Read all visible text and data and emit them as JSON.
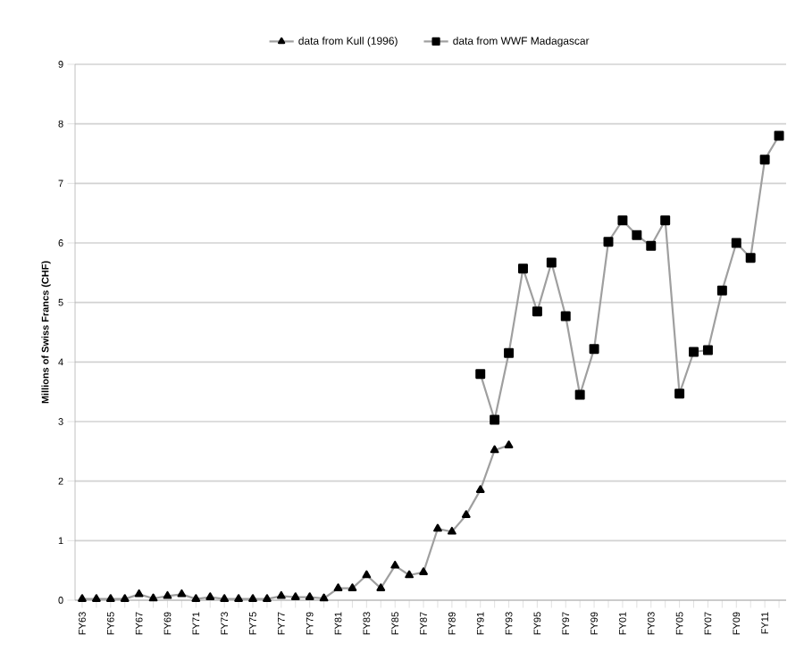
{
  "chart_data": {
    "type": "line",
    "ylabel": "Millions of Swiss Francs (CHF)",
    "categories": [
      "FY63",
      null,
      "FY65",
      null,
      "FY67",
      null,
      "FY69",
      null,
      "FY71",
      null,
      "FY73",
      null,
      "FY75",
      null,
      "FY77",
      null,
      "FY79",
      null,
      "FY81",
      null,
      "FY83",
      null,
      "FY85",
      null,
      "FY87",
      null,
      "FY89",
      null,
      "FY91",
      null,
      "FY93",
      null,
      "FY95",
      null,
      "FY97",
      null,
      "FY99",
      null,
      "FY01",
      null,
      "FY03",
      null,
      "FY05",
      null,
      "FY07",
      null,
      "FY09",
      null,
      "FY11",
      null
    ],
    "series": [
      {
        "name": "data from Kull (1996)",
        "color": "#000000",
        "marker": "triangle",
        "values": [
          0.02,
          0.02,
          0.02,
          0.02,
          0.1,
          0.03,
          0.07,
          0.1,
          0.02,
          0.05,
          0.02,
          0.02,
          0.02,
          0.02,
          0.07,
          0.05,
          0.05,
          0.03,
          0.2,
          0.2,
          0.42,
          0.2,
          0.58,
          0.42,
          0.47,
          1.2,
          1.15,
          1.43,
          1.85,
          2.52,
          2.6,
          null,
          null,
          null,
          null,
          null,
          null,
          null,
          null,
          null,
          null,
          null,
          null,
          null,
          null,
          null,
          null,
          null,
          null,
          null
        ]
      },
      {
        "name": "data from WWF Madagascar",
        "color": "#000000",
        "marker": "square",
        "values": [
          null,
          null,
          null,
          null,
          null,
          null,
          null,
          null,
          null,
          null,
          null,
          null,
          null,
          null,
          null,
          null,
          null,
          null,
          null,
          null,
          null,
          null,
          null,
          null,
          null,
          null,
          null,
          null,
          3.8,
          3.03,
          4.15,
          5.57,
          4.85,
          5.67,
          4.77,
          3.45,
          4.22,
          6.02,
          6.38,
          6.13,
          5.95,
          6.38,
          3.47,
          4.17,
          4.2,
          5.2,
          6.0,
          5.75,
          7.4,
          7.8
        ]
      }
    ],
    "ylim": [
      0,
      9
    ],
    "yticks": [
      0,
      1,
      2,
      3,
      4,
      5,
      6,
      7,
      8,
      9
    ],
    "grid": "y",
    "legend": "top"
  }
}
